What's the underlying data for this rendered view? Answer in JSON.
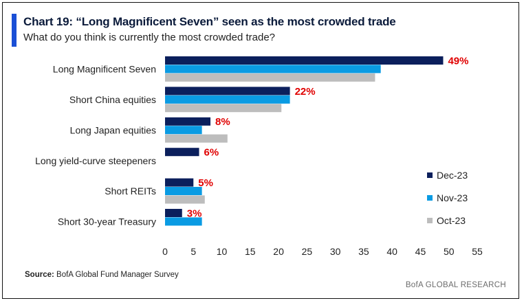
{
  "header": {
    "title": "Chart 19: “Long Magnificent Seven” seen as the most crowded trade",
    "subtitle": "What do you think is currently the most crowded trade?"
  },
  "footer": {
    "source_label": "Source:",
    "source_text": " BofA Global Fund Manager Survey",
    "brand": "BofA GLOBAL RESEARCH"
  },
  "colors": {
    "accent": "#1a4fd6",
    "dec": "#0b1f5c",
    "nov": "#0a9be3",
    "oct": "#bdbdbd",
    "label": "#e00000"
  },
  "chart_data": {
    "type": "bar",
    "orientation": "horizontal",
    "categories": [
      "Long Magnificent Seven",
      "Short China equities",
      "Long Japan equities",
      "Long yield-curve steepeners",
      "Short REITs",
      "Short 30-year Treasury"
    ],
    "series": [
      {
        "name": "Dec-23",
        "values": [
          49,
          22,
          8,
          6,
          5,
          3
        ]
      },
      {
        "name": "Nov-23",
        "values": [
          38,
          22,
          6.5,
          null,
          6.5,
          6.5
        ]
      },
      {
        "name": "Oct-23",
        "values": [
          37,
          20.5,
          11,
          null,
          7,
          null
        ]
      }
    ],
    "data_labels": [
      "49%",
      "22%",
      "8%",
      "6%",
      "5%",
      "3%"
    ],
    "xlim": [
      0,
      55
    ],
    "xticks": [
      0,
      5,
      10,
      15,
      20,
      25,
      30,
      35,
      40,
      45,
      50,
      55
    ],
    "grid": false,
    "legend_position": "right"
  }
}
